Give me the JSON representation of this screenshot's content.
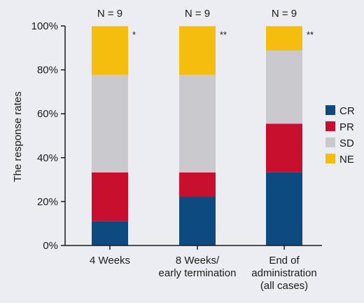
{
  "chart_data": {
    "type": "bar",
    "stacked": true,
    "ylabel": "The response rates",
    "ylim": [
      0,
      100
    ],
    "yticks": [
      "0%",
      "20%",
      "40%",
      "60%",
      "80%",
      "100%"
    ],
    "categories": [
      [
        "4 Weeks"
      ],
      [
        "8 Weeks/",
        "early termination"
      ],
      [
        "End of",
        "administration",
        "(all cases)"
      ]
    ],
    "n_labels": [
      "N = 9",
      "N = 9",
      "N = 9"
    ],
    "significance": [
      "*",
      "**",
      "**"
    ],
    "series": [
      {
        "name": "CR",
        "color": "#0c4a80",
        "values": [
          11.1,
          22.2,
          33.3
        ]
      },
      {
        "name": "PR",
        "color": "#c8102e",
        "values": [
          22.2,
          11.1,
          22.2
        ]
      },
      {
        "name": "SD",
        "color": "#c9c9ce",
        "values": [
          44.4,
          44.4,
          33.3
        ]
      },
      {
        "name": "NE",
        "color": "#f5bd0e",
        "values": [
          22.2,
          22.2,
          11.1
        ]
      }
    ],
    "legend_position": "right",
    "grid": false
  }
}
